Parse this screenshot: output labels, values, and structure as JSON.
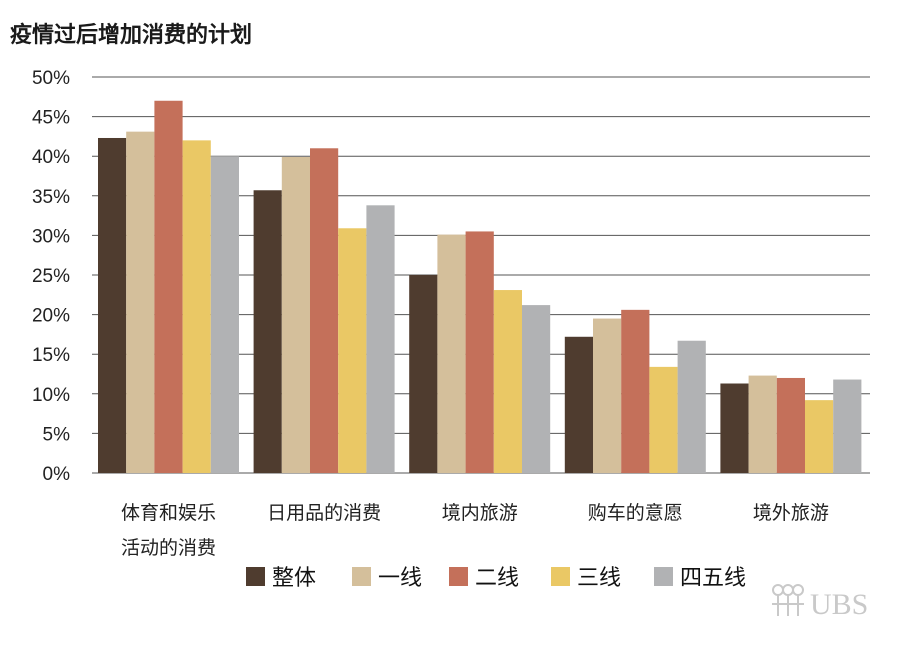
{
  "chart_data": {
    "type": "bar",
    "title": "疫情过后增加消费的计划",
    "categories": [
      [
        "体育和娱乐",
        "活动的消费"
      ],
      [
        "日用品的消费"
      ],
      [
        "境内旅游"
      ],
      [
        "购车的意愿"
      ],
      [
        "境外旅游"
      ]
    ],
    "series": [
      {
        "name": "整体",
        "color": "#4f3c2f",
        "values": [
          42.3,
          35.7,
          25.0,
          17.2,
          11.3
        ]
      },
      {
        "name": "一线",
        "color": "#d4bf9b",
        "values": [
          43.1,
          39.9,
          30.1,
          19.5,
          12.3
        ]
      },
      {
        "name": "二线",
        "color": "#c4705a",
        "values": [
          47.0,
          41.0,
          30.5,
          20.6,
          12.0
        ]
      },
      {
        "name": "三线",
        "color": "#eac865",
        "values": [
          42.0,
          30.9,
          23.1,
          13.4,
          9.2
        ]
      },
      {
        "name": "四五线",
        "color": "#b1b2b4",
        "values": [
          40.0,
          33.8,
          21.2,
          16.7,
          11.8
        ]
      }
    ],
    "ylim": [
      0,
      50
    ],
    "yticks": [
      0,
      5,
      10,
      15,
      20,
      25,
      30,
      35,
      40,
      45,
      50
    ],
    "ytick_suffix": "%",
    "grid": true,
    "legend_position": "bottom",
    "xlabel": "",
    "ylabel": ""
  },
  "watermark": {
    "text": "UBS",
    "icon": "keys-icon",
    "color": "#c9c9c9"
  }
}
